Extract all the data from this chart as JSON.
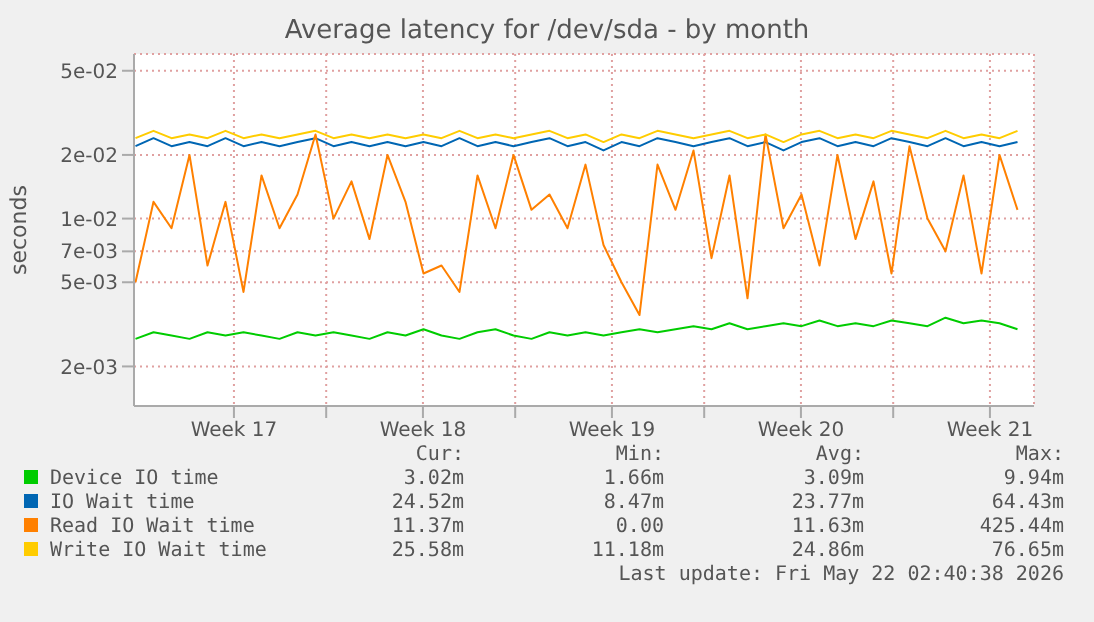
{
  "chart_data": {
    "type": "line",
    "title": "Average latency for /dev/sda - by month",
    "ylabel": "seconds",
    "log": "y",
    "grid": true,
    "legend": "bottom",
    "line_style": "solid",
    "x": [
      "2026-04-18T20:00",
      "2026-04-19T12:00",
      "2026-04-20T04:00",
      "2026-04-20T20:00",
      "2026-04-21T12:00",
      "2026-04-22T04:00",
      "2026-04-22T20:00",
      "2026-04-23T12:00",
      "2026-04-24T04:00",
      "2026-04-24T20:00",
      "2026-04-25T12:00",
      "2026-04-26T04:00",
      "2026-04-26T20:00",
      "2026-04-27T12:00",
      "2026-04-28T04:00",
      "2026-04-28T20:00",
      "2026-04-29T12:00",
      "2026-04-30T04:00",
      "2026-04-30T20:00",
      "2026-05-01T12:00",
      "2026-05-02T04:00",
      "2026-05-02T20:00",
      "2026-05-03T12:00",
      "2026-05-04T04:00",
      "2026-05-04T20:00",
      "2026-05-05T12:00",
      "2026-05-06T04:00",
      "2026-05-06T20:00",
      "2026-05-07T12:00",
      "2026-05-08T04:00",
      "2026-05-08T20:00",
      "2026-05-09T12:00",
      "2026-05-10T04:00",
      "2026-05-10T20:00",
      "2026-05-11T12:00",
      "2026-05-12T04:00",
      "2026-05-12T20:00",
      "2026-05-13T12:00",
      "2026-05-14T04:00",
      "2026-05-14T20:00",
      "2026-05-15T12:00",
      "2026-05-16T04:00",
      "2026-05-16T20:00",
      "2026-05-17T12:00",
      "2026-05-18T04:00",
      "2026-05-18T20:00",
      "2026-05-19T12:00",
      "2026-05-20T04:00",
      "2026-05-20T20:00",
      "2026-05-21T12:00"
    ],
    "xlim": [
      "2026-04-18T18:40",
      "2026-05-22T02:40"
    ],
    "xticks": [
      {
        "value": "2026-04-22T11:30",
        "label": "Week 17"
      },
      {
        "value": "2026-04-25T21:30",
        "label": null
      },
      {
        "value": "2026-04-29T11:30",
        "label": "Week 18"
      },
      {
        "value": "2026-05-02T21:30",
        "label": null
      },
      {
        "value": "2026-05-06T11:30",
        "label": "Week 19"
      },
      {
        "value": "2026-05-09T21:30",
        "label": null
      },
      {
        "value": "2026-05-13T11:30",
        "label": "Week 20"
      },
      {
        "value": "2026-05-16T21:30",
        "label": null
      },
      {
        "value": "2026-05-20T11:30",
        "label": "Week 21"
      }
    ],
    "ylim": [
      0.0013,
      0.06
    ],
    "yticks": [
      {
        "value": 0.002,
        "label": "2e-03"
      },
      {
        "value": 0.005,
        "label": "5e-03"
      },
      {
        "value": 0.007,
        "label": "7e-03"
      },
      {
        "value": 0.01,
        "label": "1e-02"
      },
      {
        "value": 0.02,
        "label": "2e-02"
      },
      {
        "value": 0.05,
        "label": "5e-02"
      }
    ],
    "series": [
      {
        "name": "Device IO time",
        "color": "#00cc00",
        "values": [
          0.0027,
          0.0029,
          0.0028,
          0.0027,
          0.0029,
          0.0028,
          0.0029,
          0.0028,
          0.0027,
          0.0029,
          0.0028,
          0.0029,
          0.0028,
          0.0027,
          0.0029,
          0.0028,
          0.003,
          0.0028,
          0.0027,
          0.0029,
          0.003,
          0.0028,
          0.0027,
          0.0029,
          0.0028,
          0.0029,
          0.0028,
          0.0029,
          0.003,
          0.0029,
          0.003,
          0.0031,
          0.003,
          0.0032,
          0.003,
          0.0031,
          0.0032,
          0.0031,
          0.0033,
          0.0031,
          0.0032,
          0.0031,
          0.0033,
          0.0032,
          0.0031,
          0.0034,
          0.0032,
          0.0033,
          0.0032,
          0.003
        ]
      },
      {
        "name": "IO Wait time",
        "color": "#0066b3",
        "values": [
          0.022,
          0.024,
          0.022,
          0.023,
          0.022,
          0.024,
          0.022,
          0.023,
          0.022,
          0.023,
          0.024,
          0.022,
          0.023,
          0.022,
          0.023,
          0.022,
          0.023,
          0.022,
          0.024,
          0.022,
          0.023,
          0.022,
          0.023,
          0.024,
          0.022,
          0.023,
          0.021,
          0.023,
          0.022,
          0.024,
          0.023,
          0.022,
          0.023,
          0.024,
          0.022,
          0.023,
          0.021,
          0.023,
          0.024,
          0.022,
          0.023,
          0.022,
          0.024,
          0.023,
          0.022,
          0.024,
          0.022,
          0.023,
          0.022,
          0.023
        ]
      },
      {
        "name": "Read IO Wait time",
        "color": "#ff8000",
        "values": [
          0.005,
          0.012,
          0.009,
          0.02,
          0.006,
          0.012,
          0.0045,
          0.016,
          0.009,
          0.013,
          0.025,
          0.01,
          0.015,
          0.008,
          0.02,
          0.012,
          0.0055,
          0.006,
          0.0045,
          0.016,
          0.009,
          0.02,
          0.011,
          0.013,
          0.009,
          0.018,
          0.0075,
          0.005,
          0.0035,
          0.018,
          0.011,
          0.021,
          0.0065,
          0.016,
          0.0042,
          0.025,
          0.009,
          0.013,
          0.006,
          0.02,
          0.008,
          0.015,
          0.0055,
          0.022,
          0.01,
          0.007,
          0.016,
          0.0055,
          0.02,
          0.011
        ]
      },
      {
        "name": "Write IO Wait time",
        "color": "#ffcc00",
        "values": [
          0.024,
          0.026,
          0.024,
          0.025,
          0.024,
          0.026,
          0.024,
          0.025,
          0.024,
          0.025,
          0.026,
          0.024,
          0.025,
          0.024,
          0.025,
          0.024,
          0.025,
          0.024,
          0.026,
          0.024,
          0.025,
          0.024,
          0.025,
          0.026,
          0.024,
          0.025,
          0.023,
          0.025,
          0.024,
          0.026,
          0.025,
          0.024,
          0.025,
          0.026,
          0.024,
          0.025,
          0.023,
          0.025,
          0.026,
          0.024,
          0.025,
          0.024,
          0.026,
          0.025,
          0.024,
          0.026,
          0.024,
          0.025,
          0.024,
          0.026
        ]
      }
    ],
    "annotations": [
      "Cur:",
      "Min:",
      "Avg:",
      "Max:",
      "3.02m",
      "1.66m",
      "3.09m",
      "9.94m",
      "24.52m",
      "8.47m",
      "23.77m",
      "64.43m",
      "11.37m",
      "0.00",
      "11.63m",
      "425.44m",
      "25.58m",
      "11.18m",
      "24.86m",
      "76.65m",
      "Last update: Fri May 22 02:40:38 2026"
    ]
  }
}
